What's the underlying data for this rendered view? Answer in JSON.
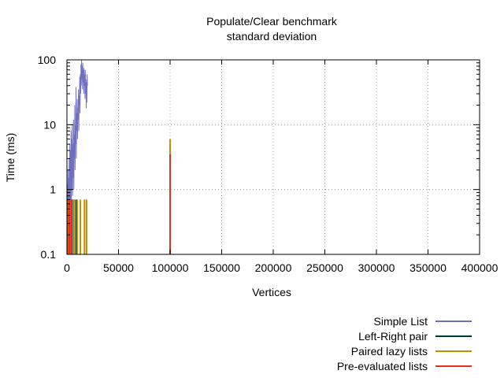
{
  "chart_data": {
    "type": "line",
    "title": "Populate/Clear benchmark",
    "subtitle": "standard deviation",
    "xlabel": "Vertices",
    "ylabel": "Time (ms)",
    "xlim": [
      0,
      400000
    ],
    "ylim": [
      0.1,
      100
    ],
    "yscale": "log",
    "grid": true,
    "legend_position": "bottom-right",
    "x_ticks": [
      {
        "value": 0,
        "label": "0"
      },
      {
        "value": 50000,
        "label": "50000"
      },
      {
        "value": 100000,
        "label": "100000"
      },
      {
        "value": 150000,
        "label": "150000"
      },
      {
        "value": 200000,
        "label": "200000"
      },
      {
        "value": 250000,
        "label": "250000"
      },
      {
        "value": 300000,
        "label": "300000"
      },
      {
        "value": 350000,
        "label": "350000"
      },
      {
        "value": 400000,
        "label": "400000"
      }
    ],
    "y_ticks": [
      {
        "value": 0.1,
        "label": "0.1"
      },
      {
        "value": 1,
        "label": "1"
      },
      {
        "value": 10,
        "label": "10"
      },
      {
        "value": 100,
        "label": "100"
      }
    ],
    "series": [
      {
        "name": "Simple List",
        "color": "#7070c0",
        "style": "line",
        "x": [
          100,
          400,
          700,
          1000,
          1300,
          1600,
          1900,
          2200,
          2500,
          2800,
          3100,
          3400,
          3700,
          4000,
          4300,
          4600,
          4900,
          5200,
          5500,
          5800,
          6100,
          6400,
          6700,
          7000,
          7300,
          7600,
          7900,
          8200,
          8500,
          8800,
          9100,
          9400,
          9700,
          10000,
          10300,
          10600,
          10900,
          11200,
          11500,
          11800,
          12100,
          12400,
          12700,
          13000,
          13300,
          13600,
          13900,
          14200,
          14500,
          14800,
          15100,
          15400,
          15700,
          16000,
          16300,
          16600,
          16900,
          17200,
          17500,
          17800,
          18100,
          18400,
          18700,
          19000,
          19300,
          19600,
          19900
        ],
        "y": [
          0.1,
          1.2,
          0.1,
          2.0,
          0.1,
          1.5,
          0.3,
          3.0,
          0.2,
          5.0,
          0.4,
          4.0,
          0.5,
          8.0,
          0.6,
          6.0,
          1.0,
          10.0,
          0.8,
          5.0,
          1.5,
          12.0,
          1.0,
          7.0,
          3.0,
          20.0,
          2.0,
          10.0,
          5.0,
          38.0,
          3.0,
          15.0,
          8.0,
          25.0,
          6.0,
          18.0,
          12.0,
          35.0,
          8.0,
          28.0,
          20.0,
          55.0,
          15.0,
          60.0,
          30.0,
          85.0,
          40.0,
          100.0,
          50.0,
          80.0,
          35.0,
          90.0,
          45.0,
          70.0,
          30.0,
          75.0,
          40.0,
          60.0,
          25.0,
          70.0,
          30.0,
          50.0,
          18.0,
          45.0,
          22.0,
          60.0,
          40.0
        ]
      },
      {
        "name": "Left-Right pair",
        "color": "#003838",
        "style": "impulses",
        "x": [
          1000,
          3000,
          5000,
          7000,
          9000
        ],
        "y": [
          0.7,
          0.7,
          0.7,
          0.7,
          0.7
        ]
      },
      {
        "name": "Paired lazy lists",
        "color": "#c09000",
        "style": "impulses",
        "x": [
          1000,
          4000,
          7000,
          10000,
          13000,
          17000,
          19000,
          100000
        ],
        "y": [
          0.7,
          0.7,
          0.7,
          0.7,
          0.7,
          0.7,
          0.7,
          6.0
        ]
      },
      {
        "name": "Pre-evaluated lists",
        "color": "#e03020",
        "style": "impulses",
        "x": [
          500,
          2500,
          4500,
          100000
        ],
        "y": [
          0.7,
          0.7,
          0.7,
          3.5
        ]
      }
    ]
  }
}
